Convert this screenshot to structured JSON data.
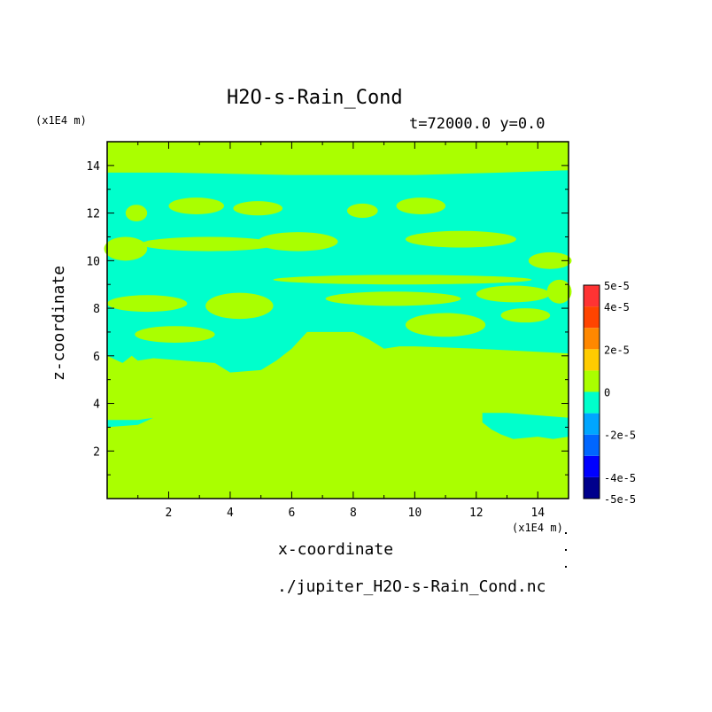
{
  "chart_data": {
    "type": "heatmap",
    "title": "H2O-s-Rain_Cond",
    "subtitle": "t=72000.0 y=0.0",
    "xlabel": "x-coordinate",
    "ylabel": "z-coordinate",
    "x_unit": "(x1E4 m)",
    "y_unit": "(x1E4 m)",
    "source": "./jupiter_H2O-s-Rain_Cond.nc",
    "xlim": [
      0,
      15
    ],
    "ylim": [
      0,
      15
    ],
    "x_ticks": [
      2,
      4,
      6,
      8,
      10,
      12,
      14
    ],
    "y_ticks": [
      2,
      4,
      6,
      8,
      10,
      12,
      14
    ],
    "colorbar": {
      "min": -5e-05,
      "max": 5e-05,
      "bands": [
        {
          "from": -5e-05,
          "to": -4e-05,
          "color": "#00008c"
        },
        {
          "from": -4e-05,
          "to": -3e-05,
          "color": "#0000ff"
        },
        {
          "from": -3e-05,
          "to": -2e-05,
          "color": "#0066ff"
        },
        {
          "from": -2e-05,
          "to": -1e-05,
          "color": "#00a6ff"
        },
        {
          "from": -1e-05,
          "to": 0,
          "color": "#00ffcc"
        },
        {
          "from": 0,
          "to": 1e-05,
          "color": "#aaff00"
        },
        {
          "from": 1e-05,
          "to": 2e-05,
          "color": "#ffcc00"
        },
        {
          "from": 2e-05,
          "to": 3e-05,
          "color": "#ff8800"
        },
        {
          "from": 3e-05,
          "to": 4e-05,
          "color": "#ff4400"
        },
        {
          "from": 4e-05,
          "to": 5e-05,
          "color": "#ff3333"
        }
      ],
      "labels": [
        {
          "value": 5e-05,
          "text": "5e-5"
        },
        {
          "value": 4e-05,
          "text": "4e-5"
        },
        {
          "value": 2e-05,
          "text": "2e-5"
        },
        {
          "value": 0,
          "text": "0"
        },
        {
          "value": -2e-05,
          "text": "-2e-5"
        },
        {
          "value": -4e-05,
          "text": "-4e-5"
        },
        {
          "value": -5e-05,
          "text": "-5e-5"
        }
      ]
    },
    "background_color": "#aaff00",
    "regions": [
      {
        "value_band": "-1e-5 to 0",
        "color": "#00ffcc",
        "polygon": [
          [
            0,
            13.7
          ],
          [
            2,
            13.7
          ],
          [
            6,
            13.6
          ],
          [
            10,
            13.6
          ],
          [
            12.8,
            13.7
          ],
          [
            15,
            13.8
          ],
          [
            15,
            6.1
          ],
          [
            13.5,
            6.2
          ],
          [
            12,
            6.3
          ],
          [
            10,
            6.4
          ],
          [
            9.5,
            6.4
          ],
          [
            9,
            6.3
          ],
          [
            8.5,
            6.7
          ],
          [
            8,
            7
          ],
          [
            6.5,
            7
          ],
          [
            6,
            6.3
          ],
          [
            5.5,
            5.8
          ],
          [
            5,
            5.4
          ],
          [
            4,
            5.3
          ],
          [
            3.5,
            5.7
          ],
          [
            2.5,
            5.8
          ],
          [
            1.5,
            5.9
          ],
          [
            1,
            5.8
          ],
          [
            0.8,
            6
          ],
          [
            0.5,
            5.7
          ],
          [
            0,
            6
          ]
        ]
      },
      {
        "value_band": "-1e-5 to 0",
        "color": "#00ffcc",
        "polygon": [
          [
            0,
            3.3
          ],
          [
            1,
            3.3
          ],
          [
            1.5,
            3.4
          ],
          [
            1,
            3.1
          ],
          [
            0,
            3
          ]
        ]
      },
      {
        "value_band": "-1e-5 to 0",
        "color": "#00ffcc",
        "polygon": [
          [
            12.2,
            3.6
          ],
          [
            13,
            3.6
          ],
          [
            14,
            3.5
          ],
          [
            15,
            3.4
          ],
          [
            15,
            2.6
          ],
          [
            14.5,
            2.5
          ],
          [
            14,
            2.6
          ],
          [
            13.2,
            2.5
          ],
          [
            12.8,
            2.7
          ],
          [
            12.5,
            2.9
          ],
          [
            12.2,
            3.2
          ]
        ]
      }
    ],
    "islands": [
      {
        "value_band": "0 to 1e-5",
        "color": "#aaff00",
        "cx": 0.95,
        "cy": 12,
        "rx": 0.35,
        "ry": 0.35
      },
      {
        "value_band": "0 to 1e-5",
        "color": "#aaff00",
        "cx": 2.9,
        "cy": 12.3,
        "rx": 0.9,
        "ry": 0.35
      },
      {
        "value_band": "0 to 1e-5",
        "color": "#aaff00",
        "cx": 4.9,
        "cy": 12.2,
        "rx": 0.8,
        "ry": 0.3
      },
      {
        "value_band": "0 to 1e-5",
        "color": "#aaff00",
        "cx": 8.3,
        "cy": 12.1,
        "rx": 0.5,
        "ry": 0.3
      },
      {
        "value_band": "0 to 1e-5",
        "color": "#aaff00",
        "cx": 10.2,
        "cy": 12.3,
        "rx": 0.8,
        "ry": 0.35
      },
      {
        "value_band": "0 to 1e-5",
        "color": "#aaff00",
        "cx": 0.6,
        "cy": 10.5,
        "rx": 0.7,
        "ry": 0.5
      },
      {
        "value_band": "0 to 1e-5",
        "color": "#aaff00",
        "cx": 3.3,
        "cy": 10.7,
        "rx": 2.2,
        "ry": 0.3
      },
      {
        "value_band": "0 to 1e-5",
        "color": "#aaff00",
        "cx": 6.2,
        "cy": 10.8,
        "rx": 1.3,
        "ry": 0.4
      },
      {
        "value_band": "0 to 1e-5",
        "color": "#aaff00",
        "cx": 11.5,
        "cy": 10.9,
        "rx": 1.8,
        "ry": 0.35
      },
      {
        "value_band": "0 to 1e-5",
        "color": "#aaff00",
        "cx": 14.4,
        "cy": 10,
        "rx": 0.7,
        "ry": 0.35
      },
      {
        "value_band": "0 to 1e-5",
        "color": "#aaff00",
        "cx": 9.6,
        "cy": 9.2,
        "rx": 4.2,
        "ry": 0.2
      },
      {
        "value_band": "0 to 1e-5",
        "color": "#aaff00",
        "cx": 1.3,
        "cy": 8.2,
        "rx": 1.3,
        "ry": 0.35
      },
      {
        "value_band": "0 to 1e-5",
        "color": "#aaff00",
        "cx": 4.3,
        "cy": 8.1,
        "rx": 1.1,
        "ry": 0.55
      },
      {
        "value_band": "0 to 1e-5",
        "color": "#aaff00",
        "cx": 9.3,
        "cy": 8.4,
        "rx": 2.2,
        "ry": 0.3
      },
      {
        "value_band": "0 to 1e-5",
        "color": "#aaff00",
        "cx": 13.2,
        "cy": 8.6,
        "rx": 1.2,
        "ry": 0.35
      },
      {
        "value_band": "0 to 1e-5",
        "color": "#aaff00",
        "cx": 14.7,
        "cy": 8.7,
        "rx": 0.4,
        "ry": 0.5
      },
      {
        "value_band": "0 to 1e-5",
        "color": "#aaff00",
        "cx": 2.2,
        "cy": 6.9,
        "rx": 1.3,
        "ry": 0.35
      },
      {
        "value_band": "0 to 1e-5",
        "color": "#aaff00",
        "cx": 11,
        "cy": 7.3,
        "rx": 1.3,
        "ry": 0.5
      },
      {
        "value_band": "0 to 1e-5",
        "color": "#aaff00",
        "cx": 13.6,
        "cy": 7.7,
        "rx": 0.8,
        "ry": 0.3
      }
    ]
  }
}
